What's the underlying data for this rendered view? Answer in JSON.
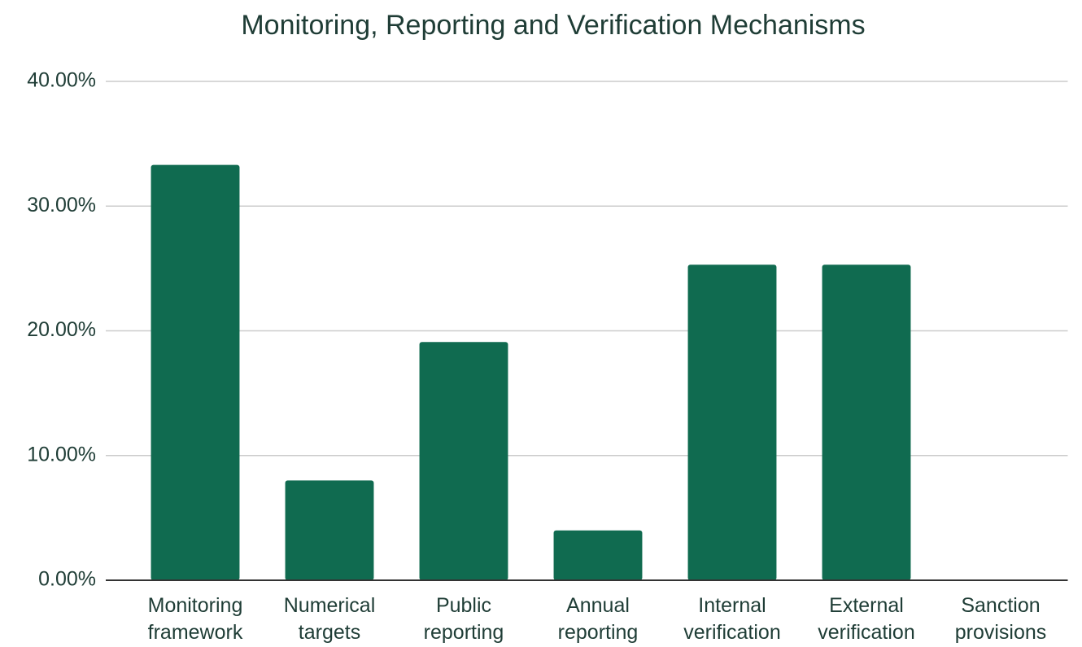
{
  "chart_data": {
    "type": "bar",
    "title": "Monitoring, Reporting and Verification Mechanisms",
    "categories": [
      "Monitoring framework",
      "Numerical targets",
      "Public reporting",
      "Annual reporting",
      "Internal verification",
      "External verification",
      "Sanction provisions"
    ],
    "values": [
      33.3,
      8,
      19.1,
      4,
      25.3,
      25.3,
      0
    ],
    "color": "#106b50",
    "ylim": [
      0,
      40
    ],
    "yticks": [
      {
        "value": 0,
        "label": "0.00%"
      },
      {
        "value": 10,
        "label": "10.00%"
      },
      {
        "value": 20,
        "label": "20.00%"
      },
      {
        "value": 30,
        "label": "30.00%"
      },
      {
        "value": 40,
        "label": "40.00%"
      }
    ],
    "grid": true
  }
}
